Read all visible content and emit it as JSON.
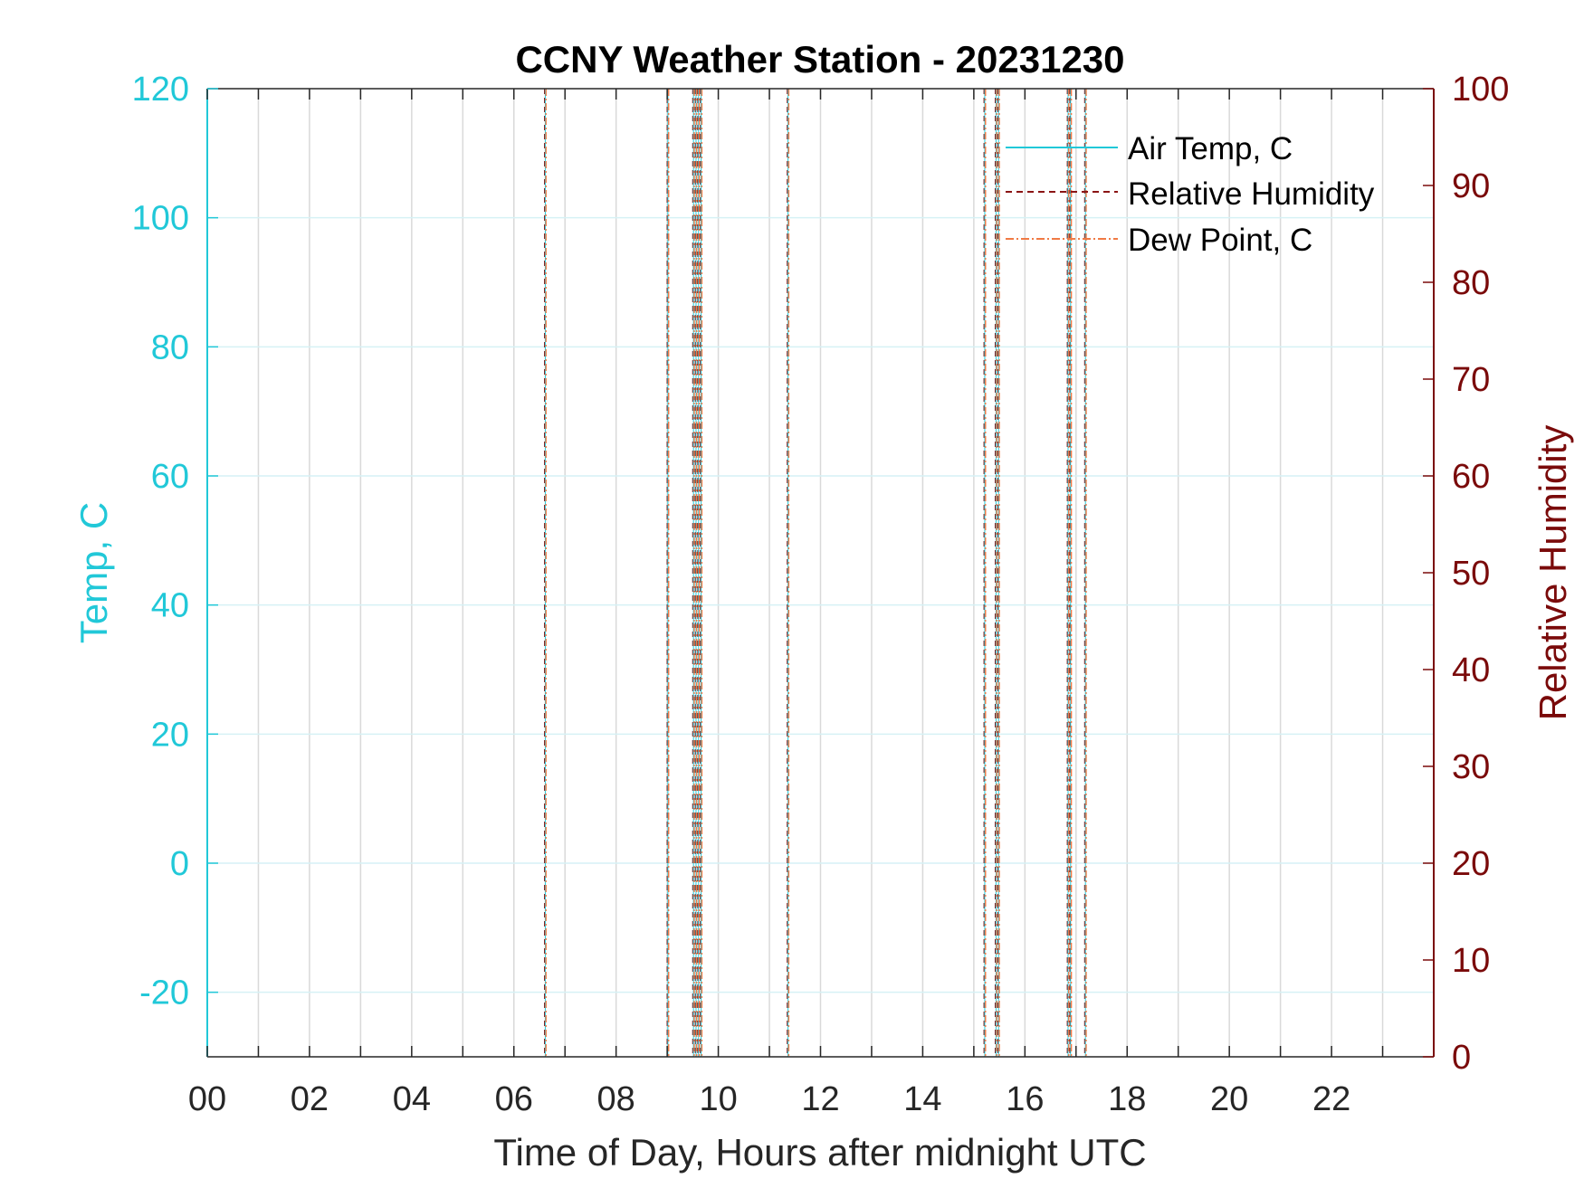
{
  "chart_data": {
    "type": "line",
    "title": "CCNY Weather Station - 20231230",
    "xlabel": "Time of Day, Hours after midnight UTC",
    "ylabel_left": "Temp, C",
    "ylabel_right": "Relative Humidity",
    "xlim": [
      0,
      24
    ],
    "ylim_left": [
      -30,
      120
    ],
    "ylim_right": [
      0,
      100
    ],
    "x_ticks": [
      0,
      2,
      4,
      6,
      8,
      10,
      12,
      14,
      16,
      18,
      20,
      22
    ],
    "x_tick_labels": [
      "00",
      "02",
      "04",
      "06",
      "08",
      "10",
      "12",
      "14",
      "16",
      "18",
      "20",
      "22"
    ],
    "y_left_ticks": [
      -20,
      0,
      20,
      40,
      60,
      80,
      100,
      120
    ],
    "y_right_ticks": [
      0,
      10,
      20,
      30,
      40,
      50,
      60,
      70,
      80,
      90,
      100
    ],
    "grid": true,
    "legend_position": "top-right",
    "colors": {
      "left_axis": "#21c8d8",
      "right_axis": "#7a0a0a",
      "air_temp": "#21c8d8",
      "relative_humidity": "#8b1414",
      "dew_point": "#f07a45",
      "frame": "#262626",
      "grid": "#d9d9d9"
    },
    "series": [
      {
        "name": "Air Temp, C",
        "axis": "left",
        "style": "solid",
        "values": []
      },
      {
        "name": "Relative Humidity",
        "axis": "right",
        "style": "dashed",
        "values": []
      },
      {
        "name": "Dew Point, C",
        "axis": "left",
        "style": "dash-dot",
        "values": []
      }
    ],
    "data_spikes_hours": [
      6.6,
      9.0,
      9.5,
      9.55,
      9.6,
      9.65,
      11.35,
      15.2,
      15.42,
      15.47,
      16.83,
      16.88,
      17.17
    ]
  }
}
